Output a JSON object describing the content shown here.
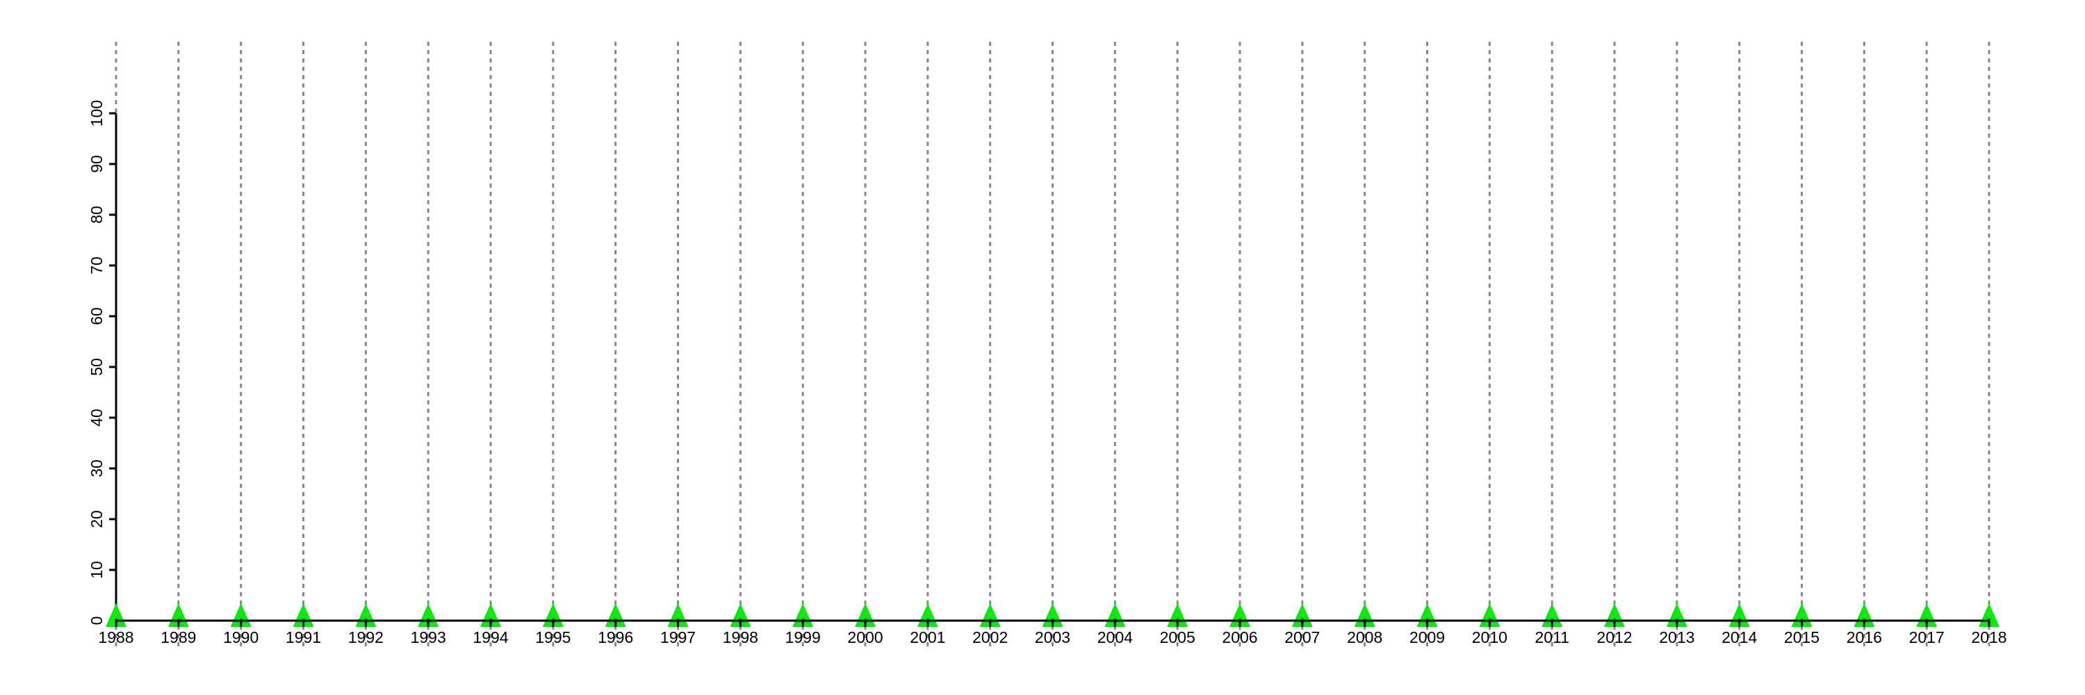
{
  "chart_data": {
    "type": "line",
    "title": "",
    "xlabel": "",
    "ylabel": "",
    "x": [
      1988,
      1989,
      1990,
      1991,
      1992,
      1993,
      1994,
      1995,
      1996,
      1997,
      1998,
      1999,
      2000,
      2001,
      2002,
      2003,
      2004,
      2005,
      2006,
      2007,
      2008,
      2009,
      2010,
      2011,
      2012,
      2013,
      2014,
      2015,
      2016,
      2017,
      2018
    ],
    "series": [
      {
        "values": [
          0,
          0,
          0,
          0,
          0,
          0,
          0,
          0,
          0,
          0,
          0,
          0,
          0,
          0,
          0,
          0,
          0,
          0,
          0,
          0,
          0,
          0,
          0,
          0,
          0,
          0,
          0,
          0,
          0,
          0,
          0
        ],
        "marker": "triangle",
        "color": "#00ee00"
      }
    ],
    "ylim": [
      0,
      100
    ],
    "yticks": [
      0,
      10,
      20,
      30,
      40,
      50,
      60,
      70,
      80,
      90,
      100
    ],
    "grid": "vertical dotted at each year",
    "grid_color": "#888888",
    "legend": "none"
  }
}
